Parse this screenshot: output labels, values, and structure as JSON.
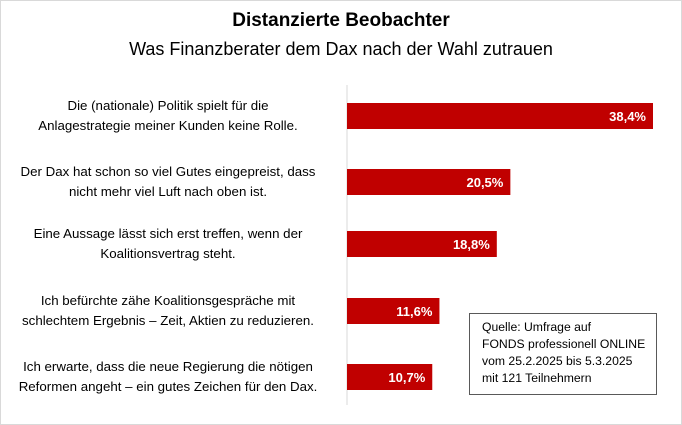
{
  "chart_data": {
    "type": "bar",
    "orientation": "horizontal",
    "title": "Distanzierte Beobachter",
    "subtitle": "Was Finanzberater dem Dax nach der Wahl zutrauen",
    "categories": [
      [
        "Die (nationale) Politik spielt für die",
        "Anlagestrategie meiner Kunden keine Rolle."
      ],
      [
        "Der Dax hat schon so viel Gutes eingepreist, dass",
        "nicht mehr viel Luft nach oben ist."
      ],
      [
        "Eine Aussage lässt sich erst treffen, wenn der",
        "Koalitionsvertrag steht."
      ],
      [
        "Ich befürchte zähe Koalitionsgespräche mit",
        "schlechtem Ergebnis – Zeit, Aktien zu reduzieren."
      ],
      [
        "Ich erwarte, dass die neue Regierung die nötigen",
        "Reformen angeht – ein gutes Zeichen für den Dax."
      ]
    ],
    "values": [
      38.4,
      20.5,
      18.8,
      11.6,
      10.7
    ],
    "value_labels": [
      "38,4%",
      "20,5%",
      "18,8%",
      "11,6%",
      "10,7%"
    ],
    "xlim": [
      0,
      40
    ],
    "bar_color": "#c00000",
    "label_color": "#ffffff",
    "grid": false,
    "legend": false,
    "note": [
      "Quelle: Umfrage auf",
      "FONDS professionell ONLINE",
      "vom 25.2.2025 bis 5.3.2025",
      "mit 121 Teilnehmern"
    ]
  }
}
